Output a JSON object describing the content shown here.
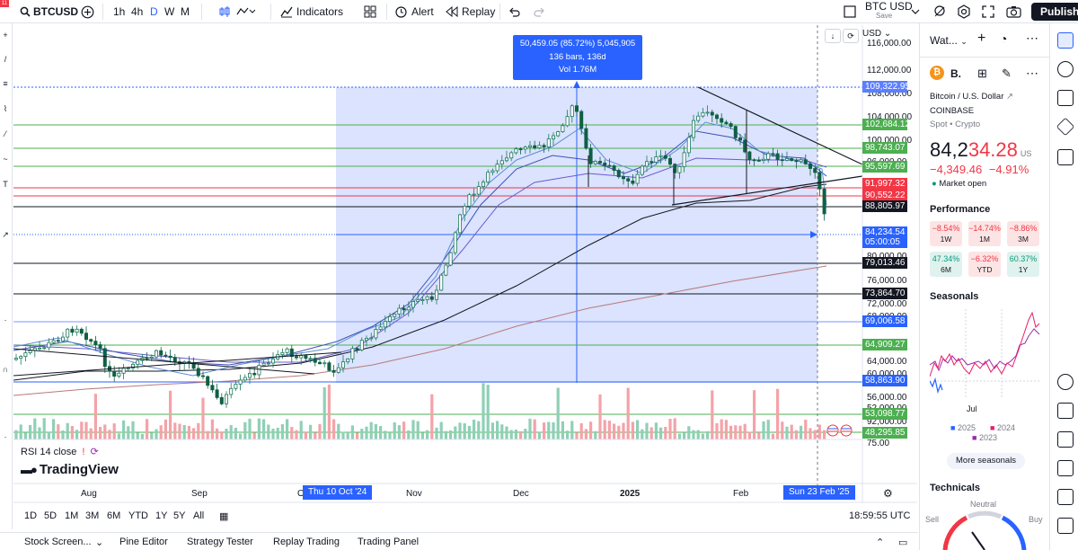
{
  "toolbar": {
    "notification_badge": "11",
    "symbol": "BTCUSD",
    "intervals": [
      "1h",
      "4h",
      "D",
      "W",
      "M"
    ],
    "active_interval": "D",
    "indicators_label": "Indicators",
    "alert_label": "Alert",
    "replay_label": "Replay",
    "layout_name": "BTC USD",
    "save_label": "Save",
    "publish_label": "Publish"
  },
  "chart": {
    "currency_select": "USD",
    "measure": {
      "line1": "50,459.05 (85.72%) 5,045,905",
      "line2": "136 bars, 136d",
      "line3": "Vol 1.76M"
    },
    "rsi_label": "RSI 14 close",
    "brand": "TradingView",
    "price_ticks": [
      {
        "label": "116,000.00",
        "price": 116000
      },
      {
        "label": "112,000.00",
        "price": 112000
      },
      {
        "label": "108,000.00",
        "price": 108000
      },
      {
        "label": "104,000.00",
        "price": 104000
      },
      {
        "label": "100,000.00",
        "price": 100000
      },
      {
        "label": "96,000.00",
        "price": 96000
      },
      {
        "label": "92,000.00",
        "price": 92000
      },
      {
        "label": "80,000.00",
        "price": 80000
      },
      {
        "label": "76,000.00",
        "price": 76000
      },
      {
        "label": "72,000.00",
        "price": 72000
      },
      {
        "label": "68,000.00",
        "price": 68000
      },
      {
        "label": "64,000.00",
        "price": 64000
      },
      {
        "label": "60,000.00",
        "price": 60000
      },
      {
        "label": "56,000.00",
        "price": 56000
      },
      {
        "label": "52,000.00",
        "price": 52000
      },
      {
        "label": "75.00",
        "price": null
      }
    ],
    "price_levels": [
      {
        "label": "109,322.95",
        "color": "#5b7fff",
        "line": "#2962ff"
      },
      {
        "label": "102,684.12",
        "color": "#4caf50",
        "line": "#4caf50"
      },
      {
        "label": "98,743.07",
        "color": "#4caf50",
        "line": "#4caf50"
      },
      {
        "label": "95,597.69",
        "color": "#4caf50",
        "line": "#4caf50"
      },
      {
        "label": "91,997.32",
        "color": "#f23645",
        "line": "#f23645"
      },
      {
        "label": "90,552.22",
        "color": "#f23645",
        "line": "#f23645"
      },
      {
        "label": "88,805.97",
        "color": "#131722",
        "line": "#131722"
      },
      {
        "label": "84,234.54",
        "color": "#2962ff",
        "line": "#2962ff"
      },
      {
        "label": "05:00:05",
        "color": "#2962ff",
        "line": null
      },
      {
        "label": "79,013.46",
        "color": "#131722",
        "line": "#131722"
      },
      {
        "label": "73,864.70",
        "color": "#131722",
        "line": "#131722"
      },
      {
        "label": "69,006.58",
        "color": "#2962ff",
        "line": "#5b7fff"
      },
      {
        "label": "64,909.27",
        "color": "#4caf50",
        "line": "#4caf50"
      },
      {
        "label": "58,863.90",
        "color": "#2962ff",
        "line": "#2962ff"
      },
      {
        "label": "53,098.77",
        "color": "#4caf50",
        "line": "#4caf50"
      },
      {
        "label": "48,295.85",
        "color": "#4caf50",
        "line": "#4caf50"
      }
    ],
    "x_ticks": [
      {
        "label": "Aug",
        "bold": false
      },
      {
        "label": "Sep",
        "bold": false
      },
      {
        "label": "O",
        "bold": false
      },
      {
        "label": "Nov",
        "bold": false
      },
      {
        "label": "Dec",
        "bold": false
      },
      {
        "label": "2025",
        "bold": true
      },
      {
        "label": "Feb",
        "bold": false
      }
    ],
    "x_highlight_start": "Thu 10 Oct '24",
    "x_highlight_end": "Sun 23 Feb '25"
  },
  "ranges": [
    "1D",
    "5D",
    "1M",
    "3M",
    "6M",
    "YTD",
    "1Y",
    "5Y",
    "All"
  ],
  "clock": "18:59:55 UTC",
  "bottom_tabs": [
    "Stock Screen...",
    "Pine Editor",
    "Strategy Tester",
    "Replay Trading",
    "Trading Panel"
  ],
  "watchlist": {
    "header": "Wat...",
    "symbol_short": "B.",
    "full_name": "Bitcoin / U.S. Dollar",
    "exchange": "COINBASE",
    "type": "Spot • Crypto",
    "price_main": "84,2",
    "price_tail": "34.28",
    "price_currency": "US",
    "change": "−4,349.46",
    "change_pct": "−4.91%",
    "market_status": "Market open",
    "performance_title": "Performance",
    "performance": [
      {
        "value": "−8.54%",
        "period": "1W",
        "dir": "neg"
      },
      {
        "value": "−14.74%",
        "period": "1M",
        "dir": "neg"
      },
      {
        "value": "−8.86%",
        "period": "3M",
        "dir": "neg"
      },
      {
        "value": "47.34%",
        "period": "6M",
        "dir": "pos"
      },
      {
        "value": "−6.32%",
        "period": "YTD",
        "dir": "neg"
      },
      {
        "value": "60.37%",
        "period": "1Y",
        "dir": "pos"
      }
    ],
    "seasonals_title": "Seasonals",
    "seasonals_xlabel": "Jul",
    "seasonals_legend": [
      {
        "label": "2025",
        "color": "#2962ff"
      },
      {
        "label": "2024",
        "color": "#e91e63"
      },
      {
        "label": "2023",
        "color": "#9c27b0"
      }
    ],
    "more_seasonals": "More seasonals",
    "technicals_title": "Technicals",
    "technicals_neutral": "Neutral",
    "technicals_sell": "Sell",
    "technicals_buy": "Buy"
  }
}
